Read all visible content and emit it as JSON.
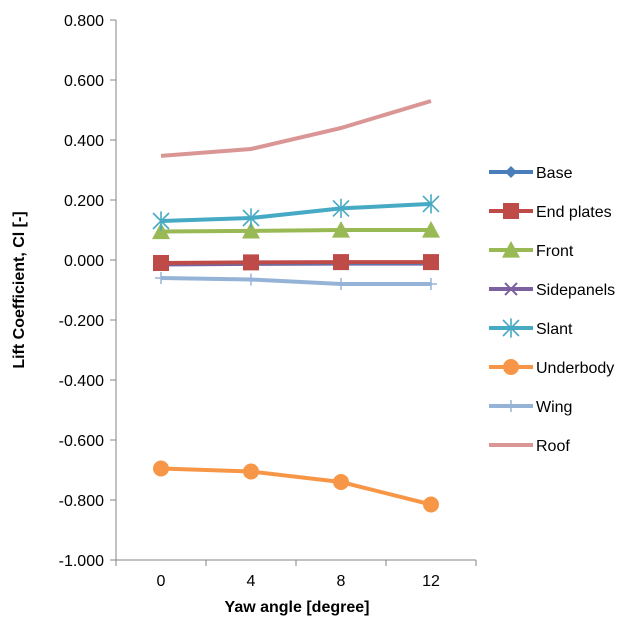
{
  "chart_data": {
    "type": "line",
    "title": "",
    "xlabel": "Yaw angle [degree]",
    "ylabel": "Lift Coefficient, Cl [-]",
    "categories": [
      "0",
      "4",
      "8",
      "12"
    ],
    "x": [
      0,
      4,
      8,
      12
    ],
    "ylim": [
      -1.0,
      0.8
    ],
    "yticks": [
      -1.0,
      -0.8,
      -0.6,
      -0.4,
      -0.2,
      0.0,
      0.2,
      0.4,
      0.6,
      0.8
    ],
    "ytick_labels": [
      "-1.000",
      "-0.800",
      "-0.600",
      "-0.400",
      "-0.200",
      "0.000",
      "0.200",
      "0.400",
      "0.600",
      "0.800"
    ],
    "grid": false,
    "legend_position": "right",
    "series": [
      {
        "name": "Base",
        "values": [
          -0.01,
          -0.01,
          -0.01,
          -0.01
        ],
        "color": "#4a7ebb",
        "marker": "diamond"
      },
      {
        "name": "End plates",
        "values": [
          -0.01,
          -0.008,
          -0.007,
          -0.007
        ],
        "color": "#be4b48",
        "marker": "square"
      },
      {
        "name": "Front",
        "values": [
          0.095,
          0.097,
          0.1,
          0.1
        ],
        "color": "#98b954",
        "marker": "triangle"
      },
      {
        "name": "Sidepanels",
        "values": [
          -0.015,
          -0.013,
          -0.012,
          -0.012
        ],
        "color": "#7d60a0",
        "marker": "x"
      },
      {
        "name": "Slant",
        "values": [
          0.13,
          0.14,
          0.172,
          0.187
        ],
        "color": "#46aac5",
        "marker": "asterisk"
      },
      {
        "name": "Underbody",
        "values": [
          -0.695,
          -0.705,
          -0.74,
          -0.815
        ],
        "color": "#f79646",
        "marker": "circle"
      },
      {
        "name": "Wing",
        "values": [
          -0.06,
          -0.065,
          -0.08,
          -0.08
        ],
        "color": "#95b3d7",
        "marker": "plus"
      },
      {
        "name": "Roof",
        "values": [
          0.347,
          0.37,
          0.44,
          0.53
        ],
        "color": "#d99694",
        "marker": "none"
      }
    ]
  }
}
